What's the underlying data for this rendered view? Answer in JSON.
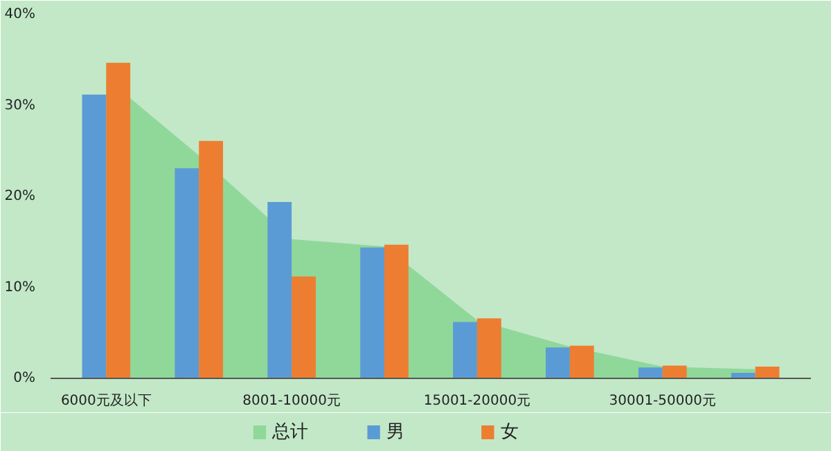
{
  "chart_data": {
    "type": "bar",
    "categories": [
      "6000元及以下",
      null,
      "8001-10000元",
      null,
      "15001-20000元",
      null,
      "30001-50000元",
      null
    ],
    "series": [
      {
        "name": "总计",
        "type": "area",
        "color": "#8fd89a",
        "values": [
          33,
          24.5,
          15.3,
          14.5,
          6.4,
          3.5,
          1.3,
          1.0
        ]
      },
      {
        "name": "男",
        "color": "#5b9bd5",
        "values": [
          31.2,
          23.1,
          19.4,
          14.4,
          6.2,
          3.4,
          1.2,
          0.6
        ]
      },
      {
        "name": "女",
        "color": "#ed7d31",
        "values": [
          34.7,
          26.1,
          11.2,
          14.7,
          6.6,
          3.6,
          1.4,
          1.3
        ]
      }
    ],
    "ylim": [
      0,
      40
    ],
    "yticks": [
      {
        "value": 0,
        "label": "0%"
      },
      {
        "value": 10,
        "label": "10%"
      },
      {
        "value": 20,
        "label": "20%"
      },
      {
        "value": 30,
        "label": "30%"
      },
      {
        "value": 40,
        "label": "40%"
      }
    ],
    "grid": false,
    "legend": "bottom"
  }
}
